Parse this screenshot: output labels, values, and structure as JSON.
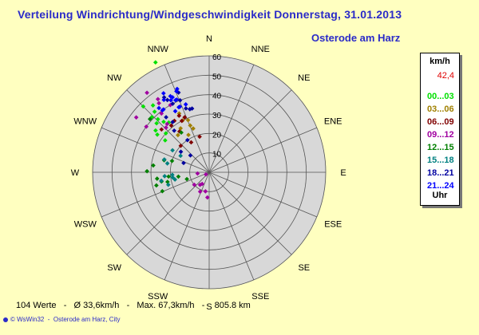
{
  "title": "Verteilung Windrichtung/Windgeschwindigkeit  Donnerstag, 31.01.2013",
  "location": "Osterode am Harz",
  "legend": {
    "unit": "km/h",
    "max_value": "42,4",
    "items": [
      {
        "label": "00...03",
        "color": "#00e000"
      },
      {
        "label": "03...06",
        "color": "#a08000"
      },
      {
        "label": "06...09",
        "color": "#800000"
      },
      {
        "label": "09...12",
        "color": "#a000a0"
      },
      {
        "label": "12...15",
        "color": "#008000"
      },
      {
        "label": "15...18",
        "color": "#008080"
      },
      {
        "label": "18...21",
        "color": "#0000a0"
      },
      {
        "label": "21...24",
        "color": "#0000ff"
      }
    ],
    "footer": "Uhr"
  },
  "stats": "104 Werte   -   Ø 33,6km/h   -   Max. 67,3km/h   -    805.8 km",
  "footer": "© WsWin32  -  Osterode am Harz, City",
  "chart_data": {
    "type": "scatter",
    "coordinate_system": "polar",
    "radial_axis": {
      "min": 0,
      "max": 60,
      "ticks": [
        10,
        20,
        30,
        40,
        50,
        60
      ]
    },
    "directions": [
      "N",
      "NNE",
      "NE",
      "ENE",
      "E",
      "ESE",
      "SE",
      "SSE",
      "S",
      "SSW",
      "SW",
      "WSW",
      "W",
      "WNW",
      "NW",
      "NNW"
    ],
    "series": [
      {
        "name": "00...03",
        "color": "#00e000",
        "points": [
          [
            334,
            63
          ],
          [
            314,
            41
          ],
          [
            308,
            35
          ],
          [
            306,
            33
          ],
          [
            313,
            37
          ],
          [
            306,
            28
          ],
          [
            315,
            48
          ],
          [
            318,
            35
          ],
          [
            312,
            30
          ],
          [
            316,
            38
          ],
          [
            318,
            42
          ],
          [
            320,
            45
          ],
          [
            321,
            33
          ]
        ]
      },
      {
        "name": "03...06",
        "color": "#a08000",
        "points": [
          [
            338,
            29
          ],
          [
            333,
            30
          ],
          [
            327,
            27
          ],
          [
            338,
            26
          ],
          [
            320,
            25
          ],
          [
            331,
            22
          ],
          [
            340,
            24
          ],
          [
            333,
            34
          ]
        ]
      },
      {
        "name": "06...09",
        "color": "#800000",
        "points": [
          [
            332,
            30
          ],
          [
            336,
            31
          ],
          [
            326,
            32
          ],
          [
            332,
            33
          ],
          [
            321,
            31
          ],
          [
            312,
            33
          ],
          [
            324,
            26
          ],
          [
            336,
            31
          ],
          [
            345,
            19
          ],
          [
            329,
            18
          ],
          [
            313,
            20
          ]
        ]
      },
      {
        "name": "09...12",
        "color": "#a000a0",
        "points": [
          [
            324,
            44
          ],
          [
            325,
            46
          ],
          [
            322,
            52
          ],
          [
            307,
            47
          ],
          [
            306,
            40
          ],
          [
            330,
            40
          ],
          [
            321,
            39
          ],
          [
            319,
            33
          ],
          [
            316,
            32
          ],
          [
            237,
            2
          ],
          [
            230,
            10
          ],
          [
            191,
            10
          ],
          [
            216,
            8
          ],
          [
            211,
            7
          ],
          [
            205,
            11
          ],
          [
            184,
            13
          ],
          [
            264,
            6
          ]
        ]
      },
      {
        "name": "12...15",
        "color": "#008000",
        "points": [
          [
            312,
            41
          ],
          [
            271,
            32
          ],
          [
            277,
            29
          ],
          [
            263,
            27
          ],
          [
            259,
            25
          ],
          [
            257,
            22
          ],
          [
            248,
            26
          ],
          [
            256,
            28
          ],
          [
            264,
            21
          ],
          [
            262,
            16
          ],
          [
            253,
            12
          ],
          [
            287,
            20
          ],
          [
            285,
            24
          ],
          [
            325,
            25
          ]
        ]
      },
      {
        "name": "15...18",
        "color": "#008080",
        "points": [
          [
            260,
            25
          ],
          [
            265,
            23
          ],
          [
            258,
            18
          ],
          [
            262,
            19
          ],
          [
            266,
            19
          ],
          [
            286,
            24
          ],
          [
            282,
            22
          ],
          [
            253,
            22
          ],
          [
            301,
            22
          ],
          [
            300,
            17
          ]
        ]
      },
      {
        "name": "18...21",
        "color": "#0000a0",
        "points": [
          [
            332,
            40
          ],
          [
            330,
            43
          ],
          [
            329,
            45
          ],
          [
            339,
            44
          ],
          [
            340,
            35
          ],
          [
            343,
            34
          ],
          [
            322,
            36
          ],
          [
            312,
            13
          ],
          [
            324,
            32
          ],
          [
            320,
            28
          ],
          [
            290,
            14
          ],
          [
            306,
            18
          ],
          [
            326,
            20
          ],
          [
            345,
            34
          ],
          [
            338,
            40
          ]
        ]
      },
      {
        "name": "21...24",
        "color": "#0000ff",
        "points": [
          [
            330,
            47
          ],
          [
            336,
            41
          ],
          [
            339,
            46
          ],
          [
            323,
            40
          ],
          [
            341,
            37
          ],
          [
            324,
            40
          ],
          [
            335,
            41
          ],
          [
            331,
            36
          ],
          [
            334,
            43
          ],
          [
            338,
            45
          ],
          [
            335,
            37
          ],
          [
            328,
            44
          ],
          [
            332,
            42
          ],
          [
            322,
            42
          ],
          [
            333,
            44
          ],
          [
            336,
            37
          ]
        ]
      }
    ]
  }
}
